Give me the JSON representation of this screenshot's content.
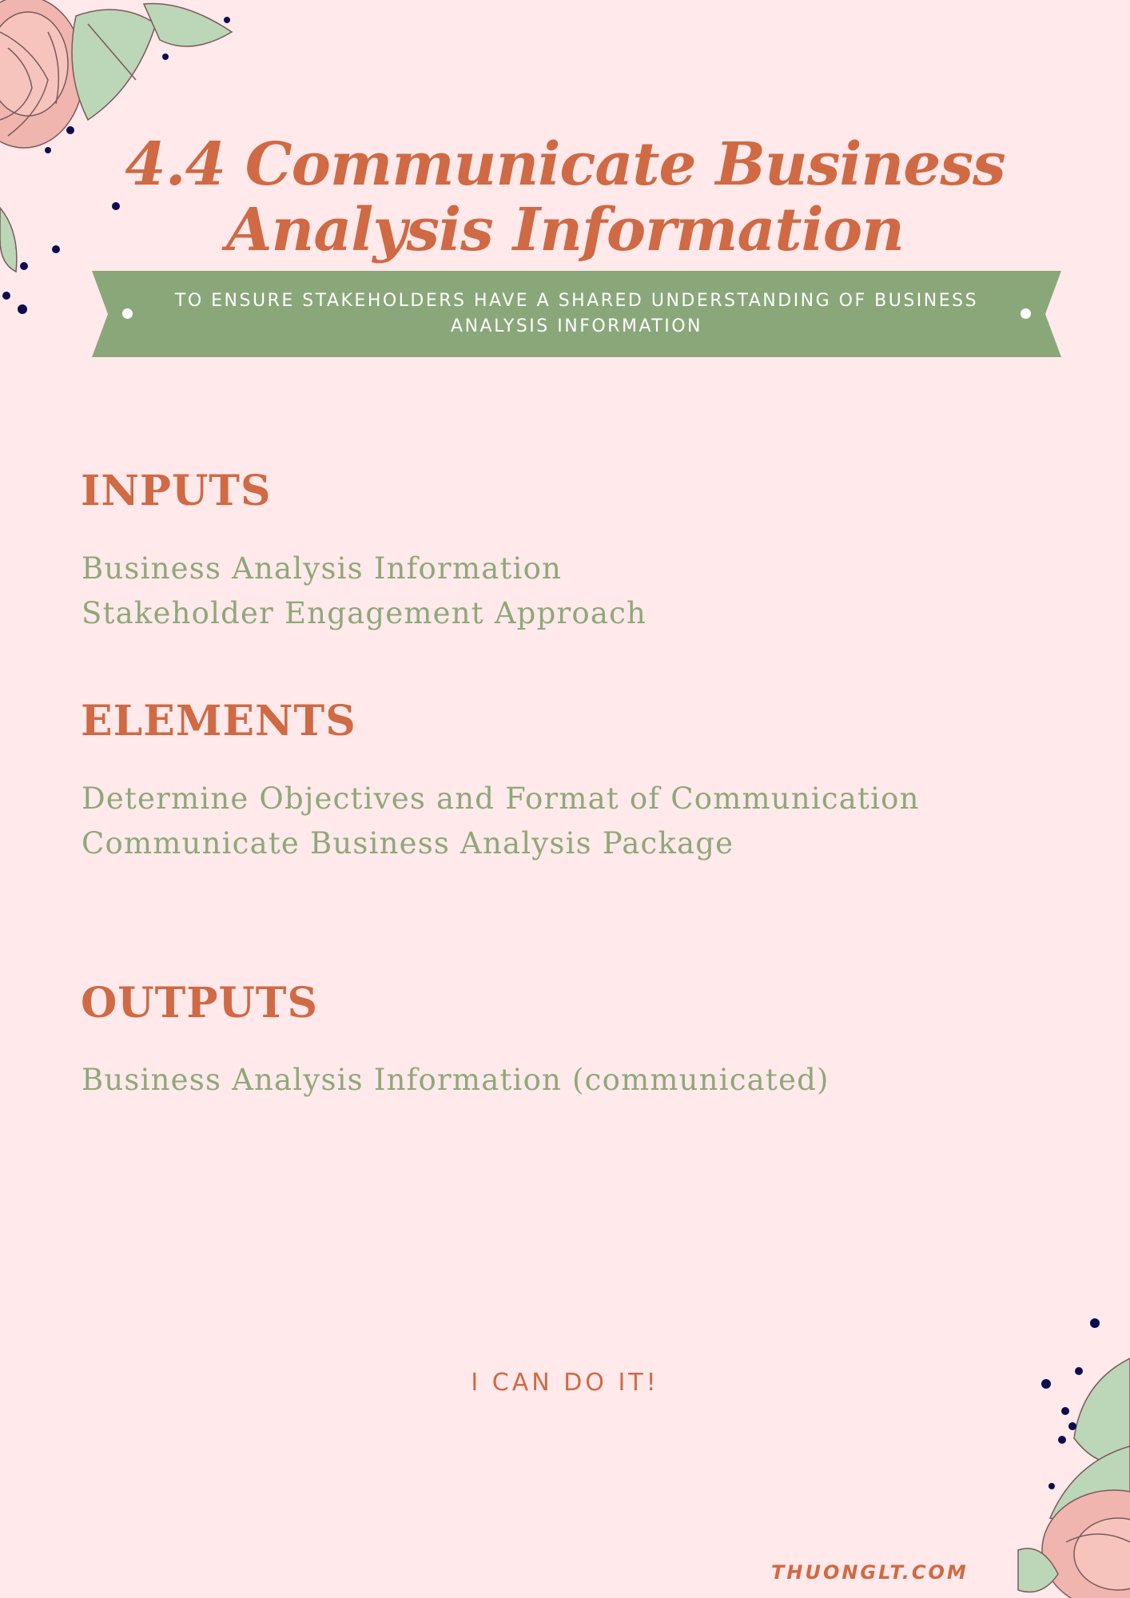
{
  "header": {
    "title": "4.4 Communicate Business Analysis Information",
    "subtitle": "To ensure stakeholders have a shared understanding of business analysis information"
  },
  "sections": [
    {
      "heading": "INPUTS",
      "items": [
        "Business Analysis Information",
        "Stakeholder Engagement Approach"
      ]
    },
    {
      "heading": "ELEMENTS",
      "items": [
        "Determine Objectives and Format of Communication",
        "Communicate Business Analysis Package"
      ]
    },
    {
      "heading": "OUTPUTS",
      "items": [
        "Business Analysis Information (communicated)"
      ]
    }
  ],
  "footer": {
    "motto": "I CAN DO IT!",
    "watermark": "THUONGLT.COM"
  },
  "colors": {
    "background": "#ffe9ea",
    "accent": "#cf6a45",
    "green": "#8ea879",
    "ribbon": "#8aa77a",
    "dots": "#0c0c4e"
  },
  "decorations": [
    "rose-flower-illustration",
    "green-leaves",
    "navy-dots"
  ]
}
